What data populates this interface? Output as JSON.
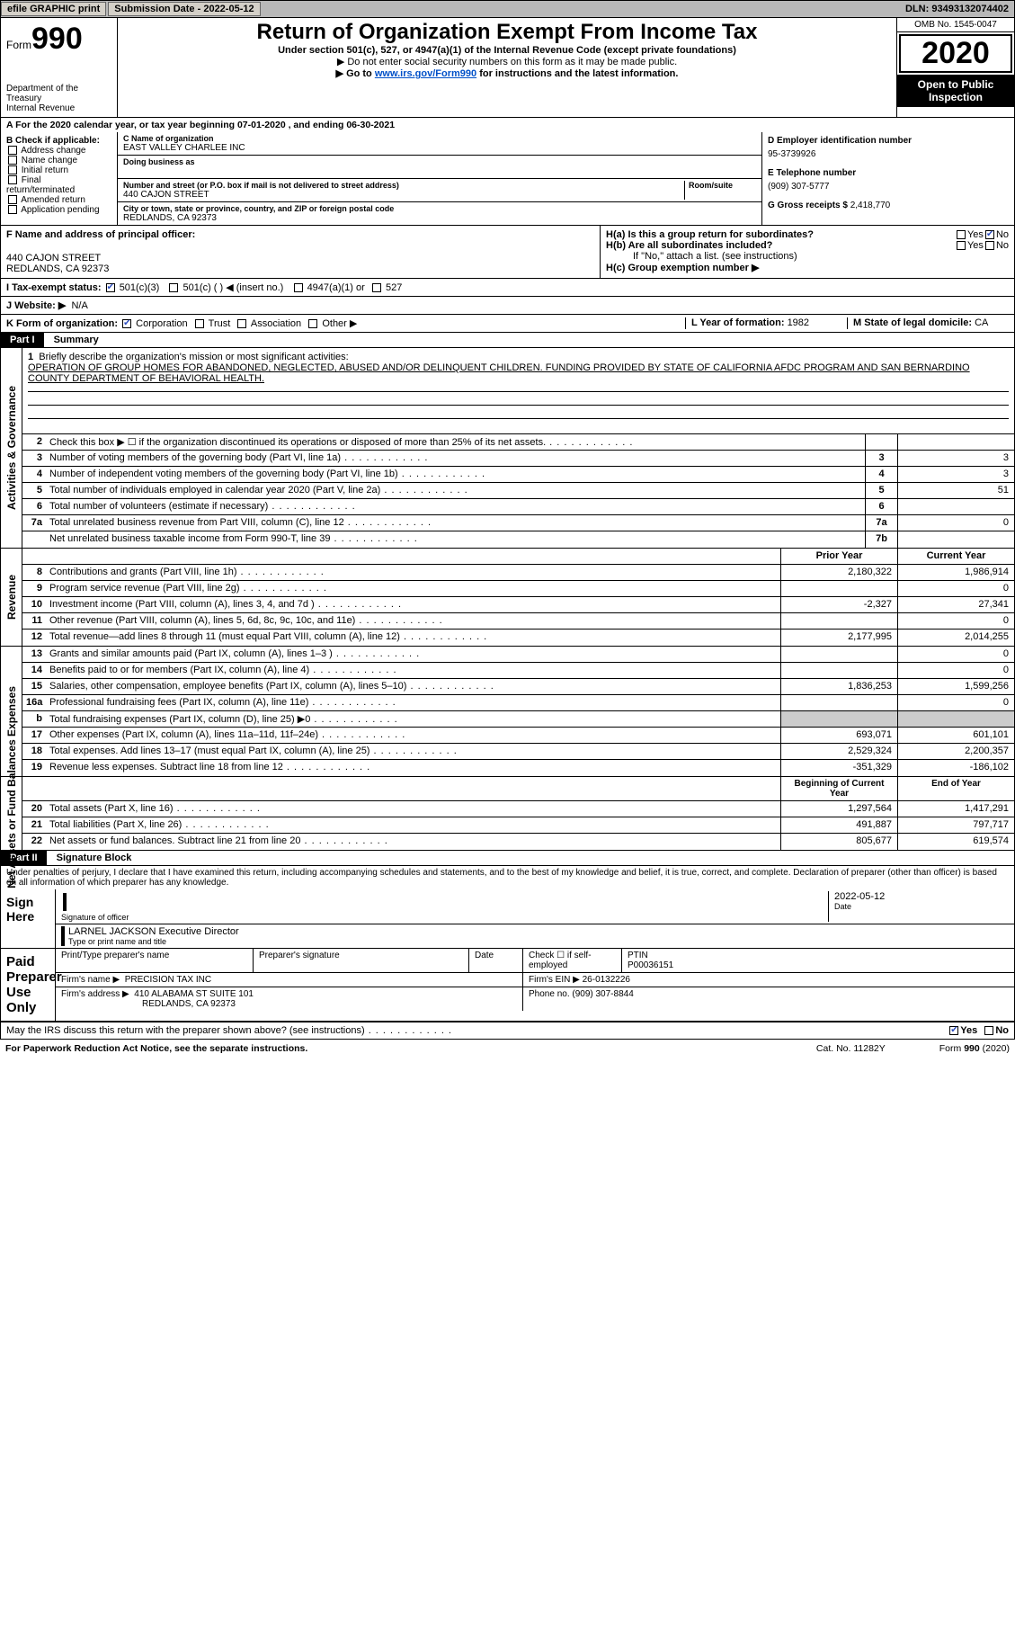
{
  "topbar": {
    "efile": "efile GRAPHIC print",
    "sub_label": "Submission Date - ",
    "sub_date": "2022-05-12",
    "dln_label": "DLN: ",
    "dln": "93493132074402"
  },
  "header": {
    "form_prefix": "Form",
    "form_no": "990",
    "dept1": "Department of the Treasury",
    "dept2": "Internal Revenue",
    "title": "Return of Organization Exempt From Income Tax",
    "sub": "Under section 501(c), 527, or 4947(a)(1) of the Internal Revenue Code (except private foundations)",
    "note1": "▶ Do not enter social security numbers on this form as it may be made public.",
    "note2_pre": "▶ Go to ",
    "note2_link": "www.irs.gov/Form990",
    "note2_post": " for instructions and the latest information.",
    "omb": "OMB No. 1545-0047",
    "year": "2020",
    "otpi": "Open to Public Inspection"
  },
  "period": "A For the 2020 calendar year, or tax year beginning 07-01-2020    , and ending 06-30-2021",
  "boxB": {
    "title": "B Check if applicable:",
    "items": [
      "Address change",
      "Name change",
      "Initial return",
      "Final return/terminated",
      "Amended return",
      "Application pending"
    ]
  },
  "boxC": {
    "name_label": "C Name of organization",
    "name": "EAST VALLEY CHARLEE INC",
    "dba_label": "Doing business as",
    "addr_label": "Number and street (or P.O. box if mail is not delivered to street address)",
    "room_label": "Room/suite",
    "addr": "440 CAJON STREET",
    "city_label": "City or town, state or province, country, and ZIP or foreign postal code",
    "city": "REDLANDS, CA  92373"
  },
  "boxD": {
    "label": "D Employer identification number",
    "val": "95-3739926"
  },
  "boxE": {
    "label": "E Telephone number",
    "val": "(909) 307-5777"
  },
  "boxG": {
    "label": "G Gross receipts $ ",
    "val": "2,418,770"
  },
  "boxF": {
    "label": "F Name and address of principal officer:",
    "line1": "440 CAJON STREET",
    "line2": "REDLANDS, CA  92373"
  },
  "boxH": {
    "a": "H(a)  Is this a group return for subordinates?",
    "b": "H(b)  Are all subordinates included?",
    "note": "If \"No,\" attach a list. (see instructions)",
    "c": "H(c)  Group exemption number ▶",
    "yes": "Yes",
    "no": "No"
  },
  "rowI": {
    "label": "I   Tax-exempt status:",
    "o1": "501(c)(3)",
    "o2": "501(c) (  )",
    "o2p": "◀ (insert no.)",
    "o3": "4947(a)(1) or",
    "o4": "527"
  },
  "rowJ": {
    "label": "J   Website: ▶",
    "val": "N/A"
  },
  "rowK": {
    "label": "K Form of organization:",
    "o1": "Corporation",
    "o2": "Trust",
    "o3": "Association",
    "o4": "Other ▶",
    "L": "L Year of formation: ",
    "Lval": "1982",
    "M": "M State of legal domicile: ",
    "Mval": "CA"
  },
  "part1": {
    "hdr": "Part I",
    "title": "Summary"
  },
  "mission": {
    "q": "Briefly describe the organization's mission or most significant activities:",
    "text": "OPERATION OF GROUP HOMES FOR ABANDONED, NEGLECTED, ABUSED AND/OR DELINQUENT CHILDREN. FUNDING PROVIDED BY STATE OF CALIFORNIA AFDC PROGRAM AND SAN BERNARDINO COUNTY DEPARTMENT OF BEHAVIORAL HEALTH."
  },
  "gov_rows": [
    {
      "n": "2",
      "d": "Check this box ▶ ☐  if the organization discontinued its operations or disposed of more than 25% of its net assets.",
      "num": "",
      "val": ""
    },
    {
      "n": "3",
      "d": "Number of voting members of the governing body (Part VI, line 1a)",
      "num": "3",
      "val": "3"
    },
    {
      "n": "4",
      "d": "Number of independent voting members of the governing body (Part VI, line 1b)",
      "num": "4",
      "val": "3"
    },
    {
      "n": "5",
      "d": "Total number of individuals employed in calendar year 2020 (Part V, line 2a)",
      "num": "5",
      "val": "51"
    },
    {
      "n": "6",
      "d": "Total number of volunteers (estimate if necessary)",
      "num": "6",
      "val": ""
    },
    {
      "n": "7a",
      "d": "Total unrelated business revenue from Part VIII, column (C), line 12",
      "num": "7a",
      "val": "0"
    },
    {
      "n": "",
      "d": "Net unrelated business taxable income from Form 990-T, line 39",
      "num": "7b",
      "val": ""
    }
  ],
  "col_hdrs": {
    "prior": "Prior Year",
    "current": "Current Year"
  },
  "rev_rows": [
    {
      "n": "8",
      "d": "Contributions and grants (Part VIII, line 1h)",
      "p": "2,180,322",
      "c": "1,986,914"
    },
    {
      "n": "9",
      "d": "Program service revenue (Part VIII, line 2g)",
      "p": "",
      "c": "0"
    },
    {
      "n": "10",
      "d": "Investment income (Part VIII, column (A), lines 3, 4, and 7d )",
      "p": "-2,327",
      "c": "27,341"
    },
    {
      "n": "11",
      "d": "Other revenue (Part VIII, column (A), lines 5, 6d, 8c, 9c, 10c, and 11e)",
      "p": "",
      "c": "0"
    },
    {
      "n": "12",
      "d": "Total revenue—add lines 8 through 11 (must equal Part VIII, column (A), line 12)",
      "p": "2,177,995",
      "c": "2,014,255"
    }
  ],
  "exp_rows": [
    {
      "n": "13",
      "d": "Grants and similar amounts paid (Part IX, column (A), lines 1–3 )",
      "p": "",
      "c": "0"
    },
    {
      "n": "14",
      "d": "Benefits paid to or for members (Part IX, column (A), line 4)",
      "p": "",
      "c": "0"
    },
    {
      "n": "15",
      "d": "Salaries, other compensation, employee benefits (Part IX, column (A), lines 5–10)",
      "p": "1,836,253",
      "c": "1,599,256"
    },
    {
      "n": "16a",
      "d": "Professional fundraising fees (Part IX, column (A), line 11e)",
      "p": "",
      "c": "0"
    },
    {
      "n": "b",
      "d": "Total fundraising expenses (Part IX, column (D), line 25) ▶0",
      "p": "SHADED",
      "c": "SHADED"
    },
    {
      "n": "17",
      "d": "Other expenses (Part IX, column (A), lines 11a–11d, 11f–24e)",
      "p": "693,071",
      "c": "601,101"
    },
    {
      "n": "18",
      "d": "Total expenses. Add lines 13–17 (must equal Part IX, column (A), line 25)",
      "p": "2,529,324",
      "c": "2,200,357"
    },
    {
      "n": "19",
      "d": "Revenue less expenses. Subtract line 18 from line 12",
      "p": "-351,329",
      "c": "-186,102"
    }
  ],
  "na_hdrs": {
    "beg": "Beginning of Current Year",
    "end": "End of Year"
  },
  "na_rows": [
    {
      "n": "20",
      "d": "Total assets (Part X, line 16)",
      "p": "1,297,564",
      "c": "1,417,291"
    },
    {
      "n": "21",
      "d": "Total liabilities (Part X, line 26)",
      "p": "491,887",
      "c": "797,717"
    },
    {
      "n": "22",
      "d": "Net assets or fund balances. Subtract line 21 from line 20",
      "p": "805,677",
      "c": "619,574"
    }
  ],
  "side_labels": {
    "gov": "Activities & Governance",
    "rev": "Revenue",
    "exp": "Expenses",
    "na": "Net Assets or Fund Balances"
  },
  "part2": {
    "hdr": "Part II",
    "title": "Signature Block"
  },
  "penalty": "Under penalties of perjury, I declare that I have examined this return, including accompanying schedules and statements, and to the best of my knowledge and belief, it is true, correct, and complete. Declaration of preparer (other than officer) is based on all information of which preparer has any knowledge.",
  "sign": {
    "here": "Sign Here",
    "sig_label": "Signature of officer",
    "date_label": "Date",
    "date_val": "2022-05-12",
    "name": "LARNEL JACKSON  Executive Director",
    "name_label": "Type or print name and title"
  },
  "paid": {
    "title": "Paid Preparer Use Only",
    "h1": "Print/Type preparer's name",
    "h2": "Preparer's signature",
    "h3": "Date",
    "h4": "Check ☐ if self-employed",
    "h5l": "PTIN",
    "h5v": "P00036151",
    "firm_l": "Firm's name    ▶",
    "firm_v": "PRECISION TAX INC",
    "ein_l": "Firm's EIN ▶ ",
    "ein_v": "26-0132226",
    "addr_l": "Firm's address ▶",
    "addr_v1": "410 ALABAMA ST SUITE 101",
    "addr_v2": "REDLANDS, CA  92373",
    "phone_l": "Phone no. ",
    "phone_v": "(909) 307-8844"
  },
  "discuss": {
    "q": "May the IRS discuss this return with the preparer shown above? (see instructions)",
    "yes": "Yes",
    "no": "No"
  },
  "footer": {
    "pra": "For Paperwork Reduction Act Notice, see the separate instructions.",
    "cat": "Cat. No. 11282Y",
    "form": "Form 990 (2020)"
  }
}
